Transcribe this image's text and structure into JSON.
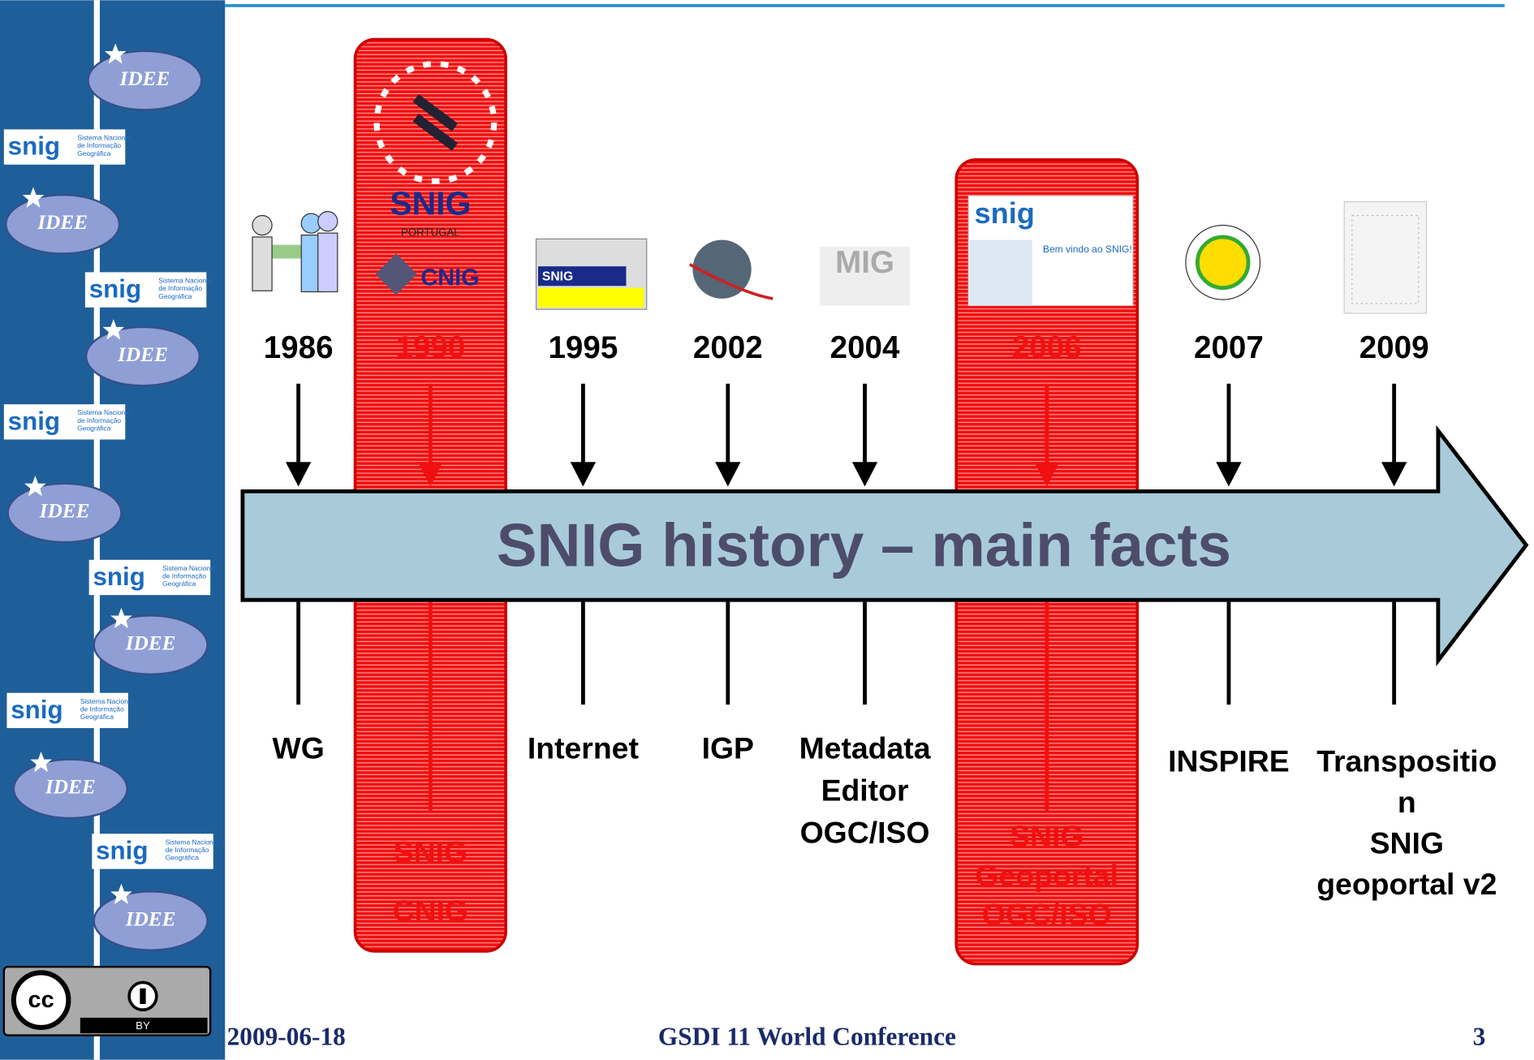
{
  "slide": {
    "title": "SNIG history – main facts",
    "sidebar": {
      "idee": "IDEE",
      "snig": "snig",
      "snig_caption": [
        "Sistema Nacional",
        "de Informação",
        "Geográfica"
      ],
      "license": "BY"
    },
    "events": [
      {
        "year": "1986",
        "label": [
          "WG"
        ],
        "highlight": false
      },
      {
        "year": "1990",
        "label": [
          "SNIG",
          "CNIG"
        ],
        "highlight": true
      },
      {
        "year": "1995",
        "label": [
          "Internet"
        ],
        "highlight": false
      },
      {
        "year": "2002",
        "label": [
          "IGP"
        ],
        "highlight": false
      },
      {
        "year": "2004",
        "label": [
          "Metadata",
          "Editor",
          "OGC/ISO"
        ],
        "highlight": false
      },
      {
        "year": "2006",
        "label": [
          "SNIG",
          "Geoportal",
          "OGC/ISO"
        ],
        "highlight": true
      },
      {
        "year": "2007",
        "label": [
          "INSPIRE"
        ],
        "highlight": false
      },
      {
        "year": "2009",
        "label": [
          "Transpositio",
          "n",
          "SNIG",
          "geoportal v2"
        ],
        "highlight": false
      }
    ],
    "icons": {
      "snig_logo": "SNIG",
      "portugal": "PORTUGAL",
      "cnig": "CNIG",
      "mig": "MIG",
      "welcome": "Bem vindo ao SNIG!"
    },
    "footer": {
      "date": "2009-06-18",
      "conference": "GSDI 11 World Conference",
      "page": "3"
    }
  }
}
